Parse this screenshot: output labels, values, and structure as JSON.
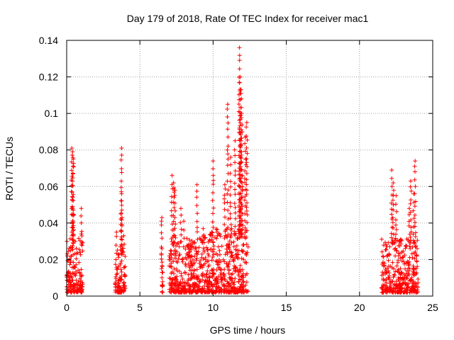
{
  "chart_data": {
    "type": "scatter",
    "title": "Day 179 of 2018, Rate Of TEC Index for receiver mac1",
    "xlabel": "GPS time / hours",
    "ylabel": "ROTI / TECUs",
    "xlim": [
      0,
      25
    ],
    "ylim": [
      0,
      0.14
    ],
    "x_ticks": [
      0,
      5,
      10,
      15,
      20,
      25
    ],
    "x_tick_labels": [
      "0",
      "5",
      "10",
      "15",
      "20",
      "25"
    ],
    "y_ticks": [
      0,
      0.02,
      0.04,
      0.06,
      0.08,
      0.1,
      0.12,
      0.14
    ],
    "y_tick_labels": [
      "0",
      "0.02",
      "0.04",
      "0.06",
      "0.08",
      "0.1",
      "0.12",
      "0.14"
    ],
    "grid": true,
    "marker": "+",
    "marker_color": "#ff0000",
    "series": [
      {
        "name": "ROTI",
        "segments": [
          {
            "x_start": 0.0,
            "x_end": 1.1,
            "typical_max": 0.03,
            "peaks": [
              [
                0.35,
                0.081
              ],
              [
                0.4,
                0.079
              ],
              [
                0.45,
                0.075
              ],
              [
                0.4,
                0.054
              ],
              [
                0.45,
                0.047
              ],
              [
                1.0,
                0.048
              ],
              [
                1.0,
                0.034
              ]
            ]
          },
          {
            "x_start": 3.3,
            "x_end": 4.0,
            "typical_max": 0.026,
            "peaks": [
              [
                3.75,
                0.081
              ],
              [
                3.75,
                0.056
              ],
              [
                3.7,
                0.045
              ],
              [
                3.4,
                0.035
              ],
              [
                3.9,
                0.033
              ]
            ]
          },
          {
            "x_start": 6.5,
            "x_end": 6.6,
            "typical_max": 0.015,
            "peaks": [
              [
                6.5,
                0.043
              ],
              [
                6.5,
                0.026
              ]
            ]
          },
          {
            "x_start": 7.0,
            "x_end": 9.3,
            "typical_max": 0.03,
            "peaks": [
              [
                7.2,
                0.066
              ],
              [
                7.3,
                0.062
              ],
              [
                7.4,
                0.058
              ],
              [
                7.8,
                0.048
              ],
              [
                8.0,
                0.041
              ],
              [
                8.9,
                0.061
              ]
            ]
          },
          {
            "x_start": 9.3,
            "x_end": 12.4,
            "typical_max": 0.035,
            "peaks": [
              [
                10.0,
                0.074
              ],
              [
                10.8,
                0.061
              ],
              [
                11.0,
                0.105
              ],
              [
                11.2,
                0.076
              ],
              [
                11.5,
                0.085
              ],
              [
                11.8,
                0.136
              ],
              [
                11.85,
                0.12
              ],
              [
                11.9,
                0.113
              ],
              [
                11.95,
                0.1
              ],
              [
                11.8,
                0.092
              ],
              [
                12.3,
                0.095
              ],
              [
                12.2,
                0.087
              ],
              [
                12.0,
                0.066
              ]
            ]
          },
          {
            "x_start": 21.5,
            "x_end": 24.0,
            "typical_max": 0.03,
            "peaks": [
              [
                22.2,
                0.069
              ],
              [
                22.3,
                0.062
              ],
              [
                22.5,
                0.055
              ],
              [
                23.5,
                0.063
              ],
              [
                23.8,
                0.074
              ],
              [
                23.7,
                0.056
              ],
              [
                23.4,
                0.048
              ]
            ]
          }
        ]
      }
    ]
  }
}
